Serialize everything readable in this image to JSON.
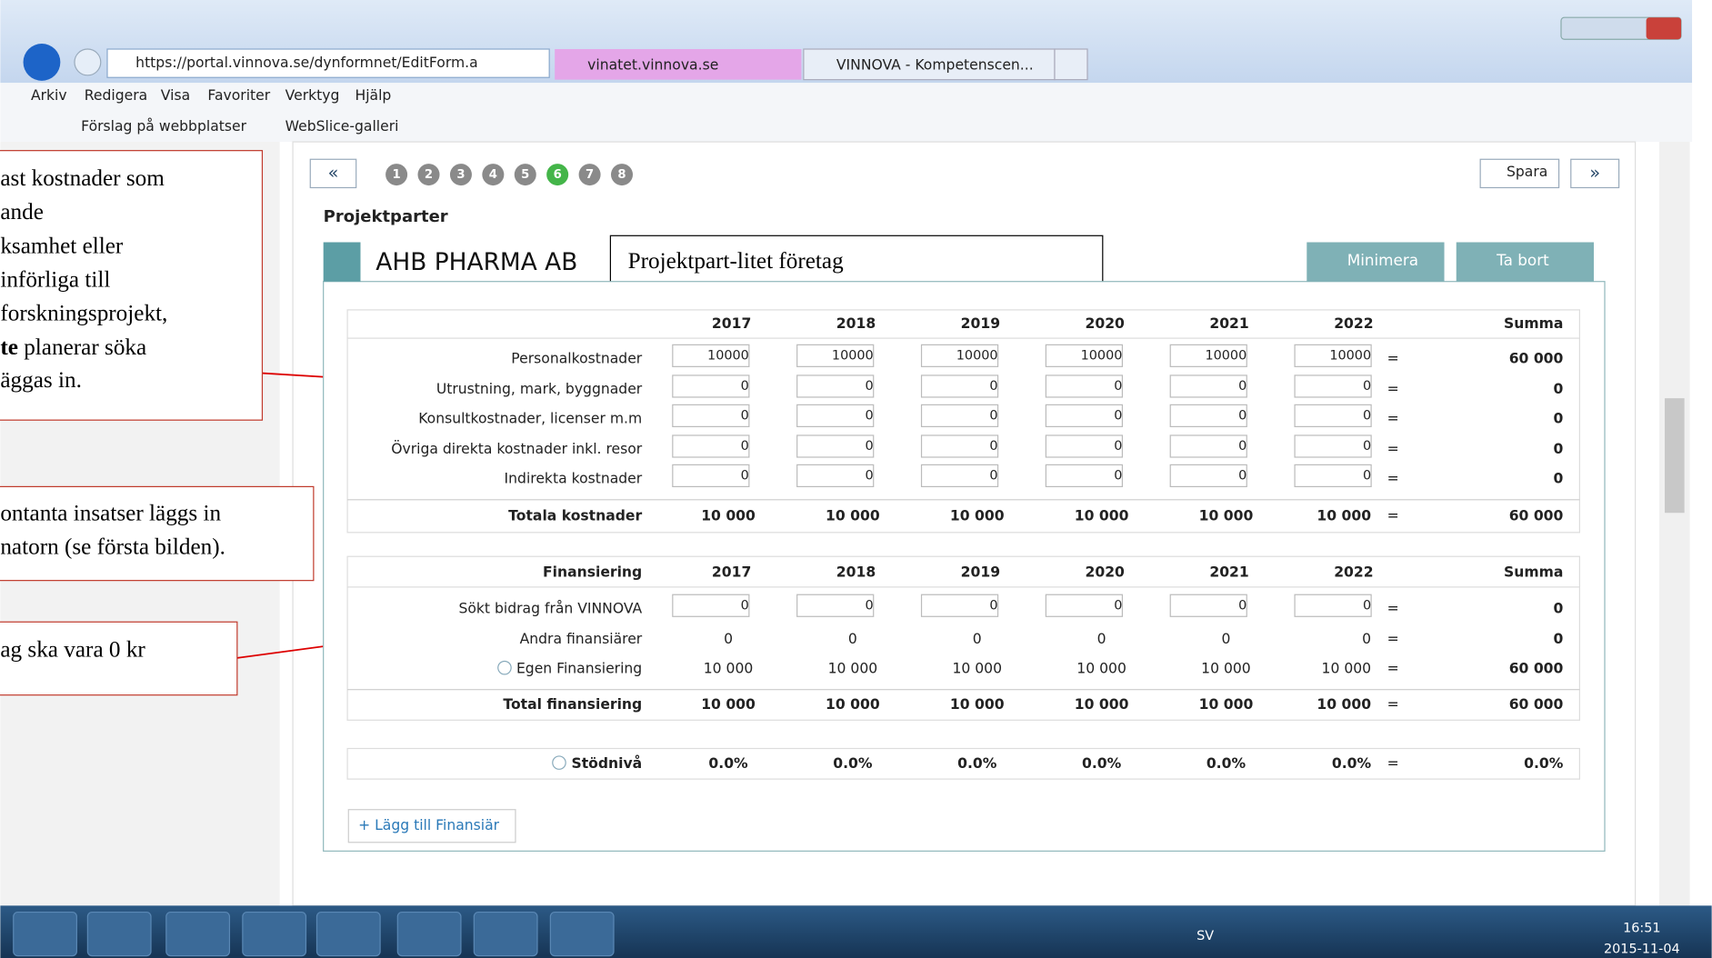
{
  "browser": {
    "url": "https://portal.vinnova.se/dynformnet/EditForm.a",
    "tabs": [
      "vinatet.vinnova.se",
      "VINNOVA - Kompetenscen..."
    ],
    "menu": [
      "Arkiv",
      "Redigera",
      "Visa",
      "Favoriter",
      "Verktyg",
      "Hjälp"
    ],
    "favorites": [
      "Förslag på webbplatser",
      "WebSlice-galleri"
    ]
  },
  "form": {
    "prev": "«",
    "next": "»",
    "save": "Spara",
    "steps": [
      "1",
      "2",
      "3",
      "4",
      "5",
      "6",
      "7",
      "8"
    ],
    "section": "Projektparter",
    "company": "AHB PHARMA AB",
    "minimize": "Minimera",
    "remove": "Ta bort",
    "add_financier": "+ Lägg till Finansiär",
    "equals": "="
  },
  "note": "Projektpart-litet företag",
  "cost_table": {
    "years": [
      "2017",
      "2018",
      "2019",
      "2020",
      "2021",
      "2022"
    ],
    "sum": "Summa",
    "rows": [
      {
        "label": "Personalkostnader",
        "values": [
          "10000",
          "10000",
          "10000",
          "10000",
          "10000",
          "10000"
        ],
        "total": "60 000"
      },
      {
        "label": "Utrustning, mark, byggnader",
        "values": [
          "0",
          "0",
          "0",
          "0",
          "0",
          "0"
        ],
        "total": "0"
      },
      {
        "label": "Konsultkostnader, licenser m.m",
        "values": [
          "0",
          "0",
          "0",
          "0",
          "0",
          "0"
        ],
        "total": "0"
      },
      {
        "label": "Övriga direkta kostnader inkl. resor",
        "values": [
          "0",
          "0",
          "0",
          "0",
          "0",
          "0"
        ],
        "total": "0"
      },
      {
        "label": "Indirekta kostnader",
        "values": [
          "0",
          "0",
          "0",
          "0",
          "0",
          "0"
        ],
        "total": "0"
      }
    ],
    "totals": {
      "label": "Totala kostnader",
      "values": [
        "10 000",
        "10 000",
        "10 000",
        "10 000",
        "10 000",
        "10 000"
      ],
      "total": "60 000"
    }
  },
  "financing_table": {
    "label": "Finansiering",
    "years": [
      "2017",
      "2018",
      "2019",
      "2020",
      "2021",
      "2022"
    ],
    "sum": "Summa",
    "rows": [
      {
        "label": "Sökt bidrag från VINNOVA",
        "values": [
          "0",
          "0",
          "0",
          "0",
          "0",
          "0"
        ],
        "total": "0"
      },
      {
        "label": "Andra finansiärer",
        "values": [
          "0",
          "0",
          "0",
          "0",
          "0",
          "0"
        ],
        "total": "0"
      },
      {
        "label": "Egen Finansiering",
        "values": [
          "10 000",
          "10 000",
          "10 000",
          "10 000",
          "10 000",
          "10 000"
        ],
        "total": "60 000"
      }
    ],
    "totals": {
      "label": "Total finansiering",
      "values": [
        "10 000",
        "10 000",
        "10 000",
        "10 000",
        "10 000",
        "10 000"
      ],
      "total": "60 000"
    }
  },
  "support": {
    "label": "Stödnivå",
    "values": [
      "0.0%",
      "0.0%",
      "0.0%",
      "0.0%",
      "0.0%",
      "0.0%"
    ],
    "total": "0.0%"
  },
  "callouts": [
    {
      "lines": [
        "ast kostnader som",
        "ande",
        "ksamhet eller",
        "införliga till",
        "forskningsprojekt,"
      ],
      "bold": "te",
      "rest": " planerar söka",
      "last": "äggas in."
    },
    {
      "lines": [
        "ontanta insatser läggs in",
        "natorn (se första bilden)."
      ]
    },
    {
      "lines": [
        "ag ska vara 0 kr"
      ]
    }
  ],
  "taskbar": {
    "language": "SV",
    "time": "16:51",
    "date": "2015-11-04"
  }
}
